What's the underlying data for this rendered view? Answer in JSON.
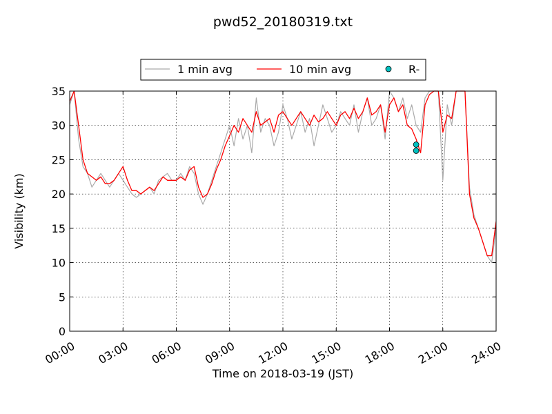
{
  "chart_data": {
    "type": "line",
    "title": "pwd52_20180319.txt",
    "xlabel": "Time on 2018-03-19 (JST)",
    "ylabel": "Visibility (km)",
    "xlim": [
      "00:00",
      "24:00"
    ],
    "ylim": [
      0,
      35
    ],
    "grid": true,
    "legend_position": "top-center",
    "xticks": [
      "00:00",
      "03:00",
      "06:00",
      "09:00",
      "12:00",
      "15:00",
      "18:00",
      "21:00",
      "24:00"
    ],
    "yticks": [
      0,
      5,
      10,
      15,
      20,
      25,
      30,
      35
    ],
    "series": [
      {
        "name": "1 min avg",
        "color": "#aaaaaa",
        "style": "line",
        "x": [
          "00:00",
          "00:15",
          "00:30",
          "00:45",
          "01:00",
          "01:15",
          "01:30",
          "01:45",
          "02:00",
          "02:15",
          "02:30",
          "02:45",
          "03:00",
          "03:15",
          "03:30",
          "03:45",
          "04:00",
          "04:15",
          "04:30",
          "04:45",
          "05:00",
          "05:15",
          "05:30",
          "05:45",
          "06:00",
          "06:15",
          "06:30",
          "06:45",
          "07:00",
          "07:15",
          "07:30",
          "07:45",
          "08:00",
          "08:15",
          "08:30",
          "08:45",
          "09:00",
          "09:15",
          "09:30",
          "09:45",
          "10:00",
          "10:15",
          "10:30",
          "10:45",
          "11:00",
          "11:15",
          "11:30",
          "11:45",
          "12:00",
          "12:15",
          "12:30",
          "12:45",
          "13:00",
          "13:15",
          "13:30",
          "13:45",
          "14:00",
          "14:15",
          "14:30",
          "14:45",
          "15:00",
          "15:15",
          "15:30",
          "15:45",
          "16:00",
          "16:15",
          "16:30",
          "16:45",
          "17:00",
          "17:15",
          "17:30",
          "17:45",
          "18:00",
          "18:15",
          "18:30",
          "18:45",
          "19:00",
          "19:15",
          "19:30",
          "19:45",
          "20:00",
          "20:15",
          "20:30",
          "20:45",
          "21:00",
          "21:15",
          "21:30",
          "21:45",
          "22:00",
          "22:15",
          "22:30",
          "22:45",
          "23:00",
          "23:15",
          "23:30",
          "23:45",
          "24:00"
        ],
        "y": [
          33,
          35,
          28,
          24,
          23,
          21,
          22,
          23,
          22,
          21,
          22,
          23,
          22,
          21,
          20,
          19.5,
          20,
          20.5,
          21,
          20,
          22,
          22.5,
          23,
          22,
          22,
          23,
          22,
          24,
          23,
          20,
          18.5,
          20,
          22,
          24,
          26,
          28,
          30,
          27,
          31,
          28,
          30,
          26,
          34,
          29,
          31,
          30,
          27,
          29,
          33,
          31,
          28,
          30,
          32,
          29,
          31,
          27,
          30,
          33,
          31,
          29,
          30,
          32,
          31,
          30,
          33,
          29,
          32,
          34,
          30,
          31,
          33,
          28,
          35,
          34,
          32,
          34,
          31,
          33,
          30,
          29,
          34,
          35,
          35,
          35,
          22,
          33,
          30,
          35,
          35,
          35,
          21,
          17,
          15,
          13,
          11,
          10,
          15
        ]
      },
      {
        "name": "10 min avg",
        "color": "#ff0000",
        "style": "line",
        "x": [
          "00:00",
          "00:15",
          "00:30",
          "00:45",
          "01:00",
          "01:15",
          "01:30",
          "01:45",
          "02:00",
          "02:15",
          "02:30",
          "02:45",
          "03:00",
          "03:15",
          "03:30",
          "03:45",
          "04:00",
          "04:15",
          "04:30",
          "04:45",
          "05:00",
          "05:15",
          "05:30",
          "05:45",
          "06:00",
          "06:15",
          "06:30",
          "06:45",
          "07:00",
          "07:15",
          "07:30",
          "07:45",
          "08:00",
          "08:15",
          "08:30",
          "08:45",
          "09:00",
          "09:15",
          "09:30",
          "09:45",
          "10:00",
          "10:15",
          "10:30",
          "10:45",
          "11:00",
          "11:15",
          "11:30",
          "11:45",
          "12:00",
          "12:15",
          "12:30",
          "12:45",
          "13:00",
          "13:15",
          "13:30",
          "13:45",
          "14:00",
          "14:15",
          "14:30",
          "14:45",
          "15:00",
          "15:15",
          "15:30",
          "15:45",
          "16:00",
          "16:15",
          "16:30",
          "16:45",
          "17:00",
          "17:15",
          "17:30",
          "17:45",
          "18:00",
          "18:15",
          "18:30",
          "18:45",
          "19:00",
          "19:15",
          "19:30",
          "19:45",
          "20:00",
          "20:15",
          "20:30",
          "20:45",
          "21:00",
          "21:15",
          "21:30",
          "21:45",
          "22:00",
          "22:15",
          "22:30",
          "22:45",
          "23:00",
          "23:15",
          "23:30",
          "23:45",
          "24:00"
        ],
        "y": [
          33.5,
          35,
          30,
          25,
          23,
          22.5,
          22,
          22.5,
          21.5,
          21.5,
          22,
          23,
          24,
          22,
          20.5,
          20.5,
          20,
          20.5,
          21,
          20.5,
          21.5,
          22.5,
          22,
          22,
          22,
          22.5,
          22,
          23.5,
          24,
          21,
          19.5,
          20,
          21.5,
          23.5,
          25,
          27,
          28.5,
          30,
          29,
          31,
          30,
          29,
          32,
          30,
          30.5,
          31,
          29,
          31.5,
          32,
          31,
          30,
          31,
          32,
          31,
          30,
          31.5,
          30.5,
          31,
          32,
          31,
          30,
          31.5,
          32,
          31,
          32.5,
          31,
          32,
          34,
          31.5,
          32,
          33,
          29,
          33,
          34,
          32,
          33,
          30,
          29.5,
          28,
          26,
          33,
          34.5,
          35,
          35,
          29,
          31.5,
          31,
          35,
          35,
          35,
          20,
          16.5,
          15,
          13,
          11,
          11,
          16
        ]
      },
      {
        "name": "R-",
        "color": "#00bfbf",
        "style": "marker",
        "x": [
          "19:30",
          "19:30"
        ],
        "y": [
          27.2,
          26.3
        ]
      }
    ]
  }
}
